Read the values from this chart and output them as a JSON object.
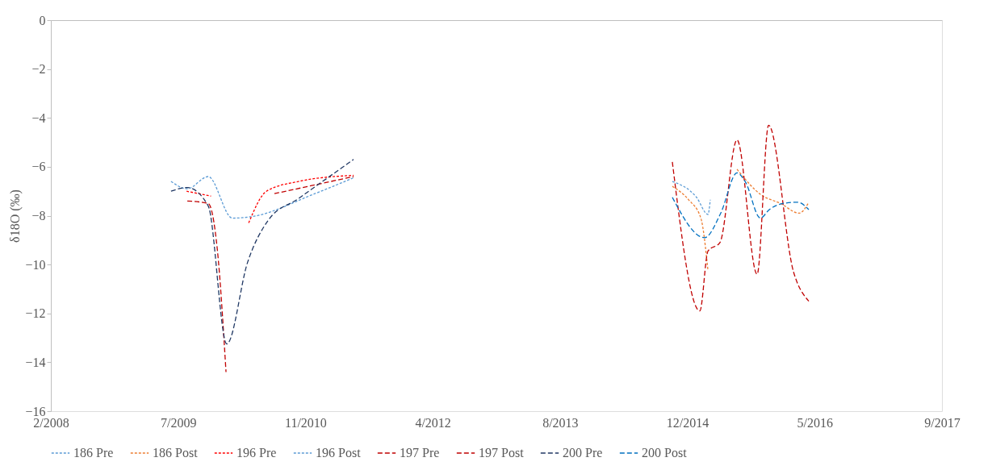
{
  "chart_data": {
    "type": "line",
    "ylabel": "δ18O (‰)",
    "ylim": [
      -16,
      0
    ],
    "yticks": [
      -16,
      -14,
      -12,
      -10,
      -8,
      -6,
      -4,
      -2,
      0
    ],
    "xlim": [
      "2008-02-25",
      "2017-09-25"
    ],
    "xticks": [
      {
        "value": "2008-02-25",
        "label": "2/2008"
      },
      {
        "value": "2009-07-09",
        "label": "7/2009"
      },
      {
        "value": "2010-11-21",
        "label": "11/2010"
      },
      {
        "value": "2012-04-04",
        "label": "4/2012"
      },
      {
        "value": "2013-08-17",
        "label": "8/2013"
      },
      {
        "value": "2014-12-30",
        "label": "12/2014"
      },
      {
        "value": "2016-05-13",
        "label": "5/2016"
      },
      {
        "value": "2017-09-25",
        "label": "9/2017"
      }
    ],
    "grid": false,
    "legend": "bottom",
    "series": [
      {
        "name": "186 Pre",
        "color": "#5b9bd5",
        "line_style": "dotted",
        "x": [
          "2009-06-11",
          "2009-08-14",
          "2009-11-04",
          "2010-02-07",
          "2010-04-18",
          "2010-12-28",
          "2011-05-29"
        ],
        "values": [
          -6.6,
          -6.9,
          -6.4,
          -8.1,
          -8.05,
          -7.1,
          -6.45
        ]
      },
      {
        "name": "186 Post",
        "color": "#ed7d31",
        "line_style": "dotted",
        "x": [
          "2014-11-01",
          "2015-01-04",
          "2015-02-21",
          "2015-03-21",
          "2015-05-10",
          "2015-07-13",
          "2015-10-16",
          "2015-12-31",
          "2016-03-13",
          "2016-04-20"
        ],
        "values": [
          -6.8,
          -7.35,
          -8.1,
          -10.25,
          null,
          -6.1,
          -7.15,
          -7.5,
          -7.9,
          -7.45
        ]
      },
      {
        "name": "196 Pre",
        "color": "#ff0000",
        "line_style": "dotted",
        "x": [
          "2009-08-11",
          "2009-11-15",
          "2010-01-16",
          "2010-04-12",
          "2010-06-21",
          "2010-10-25",
          "2011-05-29"
        ],
        "values": [
          -7.0,
          -7.2,
          null,
          -8.3,
          -7.0,
          -6.6,
          -6.35
        ]
      },
      {
        "name": "196 Post",
        "color": "#5b9bd5",
        "line_style": "dotted",
        "x": [
          "2014-11-01",
          "2015-02-04",
          "2015-03-21",
          "2015-03-30"
        ],
        "values": [
          -6.6,
          -7.25,
          -7.95,
          -7.35
        ]
      },
      {
        "name": "197 Pre",
        "color": "#c00000",
        "line_style": "dashed",
        "x": [
          "2009-08-14",
          "2009-11-04",
          "2009-12-10",
          "2010-01-13",
          "2010-04-18",
          "2010-07-22",
          "2011-05-29"
        ],
        "values": [
          -7.4,
          -7.5,
          -9.4,
          -14.4,
          null,
          -7.1,
          -6.4
        ]
      },
      {
        "name": "197 Post",
        "color": "#c00000",
        "line_style": "dashed",
        "x": [
          "2014-11-01",
          "2015-02-17",
          "2015-03-21",
          "2015-05-07",
          "2015-07-13",
          "2015-09-30",
          "2015-11-14",
          "2016-02-20",
          "2016-04-20"
        ],
        "values": [
          -5.8,
          -11.9,
          -9.45,
          -9.1,
          -4.9,
          -10.4,
          -4.3,
          -10.3,
          -11.5
        ]
      },
      {
        "name": "200 Pre",
        "color": "#203864",
        "line_style": "dashed",
        "x": [
          "2009-06-11",
          "2009-08-14",
          "2009-11-04",
          "2010-01-16",
          "2010-04-08",
          "2010-06-27",
          "2010-10-25",
          "2011-05-29"
        ],
        "values": [
          -7.0,
          -6.85,
          -7.6,
          -13.25,
          -9.9,
          -8.2,
          -7.3,
          -5.7
        ]
      },
      {
        "name": "200 Post",
        "color": "#0070c0",
        "line_style": "dashed",
        "x": [
          "2014-11-01",
          "2015-03-08",
          "2015-05-10",
          "2015-07-13",
          "2015-08-14",
          "2015-10-13",
          "2015-11-17",
          "2016-01-10",
          "2016-03-07",
          "2016-04-20"
        ],
        "values": [
          -7.25,
          -8.9,
          -7.9,
          -6.25,
          -6.6,
          -8.1,
          -7.75,
          -7.5,
          -7.45,
          -7.75
        ]
      }
    ]
  }
}
